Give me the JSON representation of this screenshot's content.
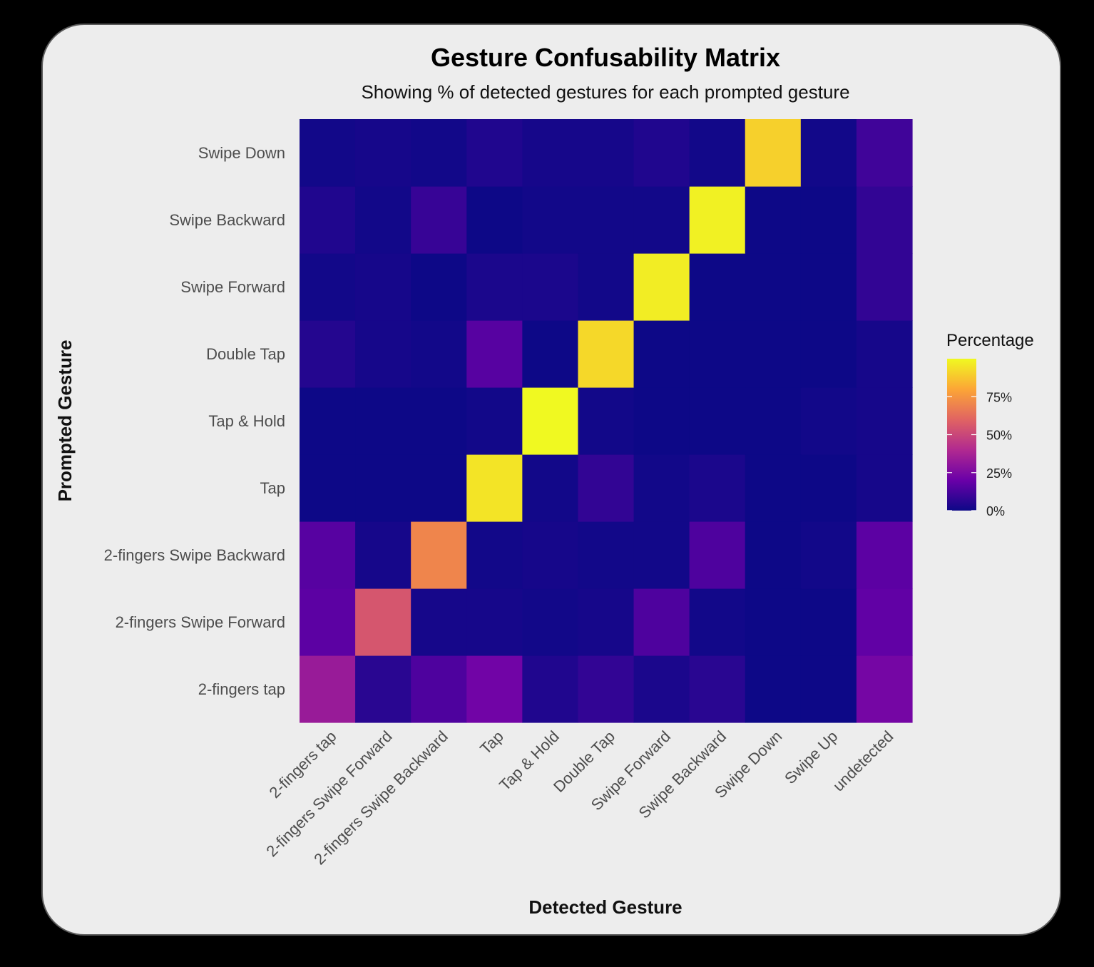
{
  "chart_data": {
    "type": "heatmap",
    "title": "Gesture Confusability Matrix",
    "subtitle": "Showing % of detected gestures for each prompted gesture",
    "xlabel": "Detected Gesture",
    "ylabel": "Prompted Gesture",
    "x_categories": [
      "2-fingers tap",
      "2-fingers Swipe Forward",
      "2-fingers Swipe Backward",
      "Tap",
      "Tap & Hold",
      "Double Tap",
      "Swipe Forward",
      "Swipe Backward",
      "Swipe Down",
      "Swipe Up",
      "undetected"
    ],
    "y_categories": [
      "2-fingers tap",
      "2-fingers Swipe Forward",
      "2-fingers Swipe Backward",
      "Tap",
      "Tap & Hold",
      "Double Tap",
      "Swipe Forward",
      "Swipe Backward",
      "Swipe Down"
    ],
    "values": [
      [
        33,
        6,
        14,
        22,
        4,
        8,
        3,
        6,
        0,
        0,
        23
      ],
      [
        17,
        55,
        2,
        2,
        1,
        2,
        14,
        1,
        0,
        0,
        18
      ],
      [
        16,
        2,
        70,
        1,
        2,
        1,
        1,
        14,
        0,
        1,
        17
      ],
      [
        0,
        0,
        0,
        95,
        1,
        8,
        1,
        3,
        0,
        0,
        2
      ],
      [
        0,
        0,
        0,
        1,
        100,
        1,
        0,
        0,
        0,
        1,
        2
      ],
      [
        5,
        2,
        1,
        16,
        0,
        92,
        0,
        0,
        0,
        0,
        2
      ],
      [
        1,
        2,
        0,
        3,
        3,
        1,
        97,
        0,
        0,
        0,
        8
      ],
      [
        4,
        1,
        9,
        0,
        1,
        1,
        1,
        98,
        0,
        0,
        8
      ],
      [
        1,
        2,
        1,
        4,
        2,
        2,
        4,
        1,
        90,
        1,
        11
      ]
    ],
    "legend": {
      "title": "Percentage",
      "placement": "right",
      "ticks": [
        "0%",
        "25%",
        "50%",
        "75%"
      ],
      "tick_values": [
        0,
        25,
        50,
        75
      ],
      "range": [
        0,
        100
      ],
      "colormap": "plasma",
      "colors": [
        "#0d0887",
        "#6a00a8",
        "#b12a90",
        "#e16462",
        "#fca636",
        "#f0f921"
      ]
    },
    "grid": false
  }
}
